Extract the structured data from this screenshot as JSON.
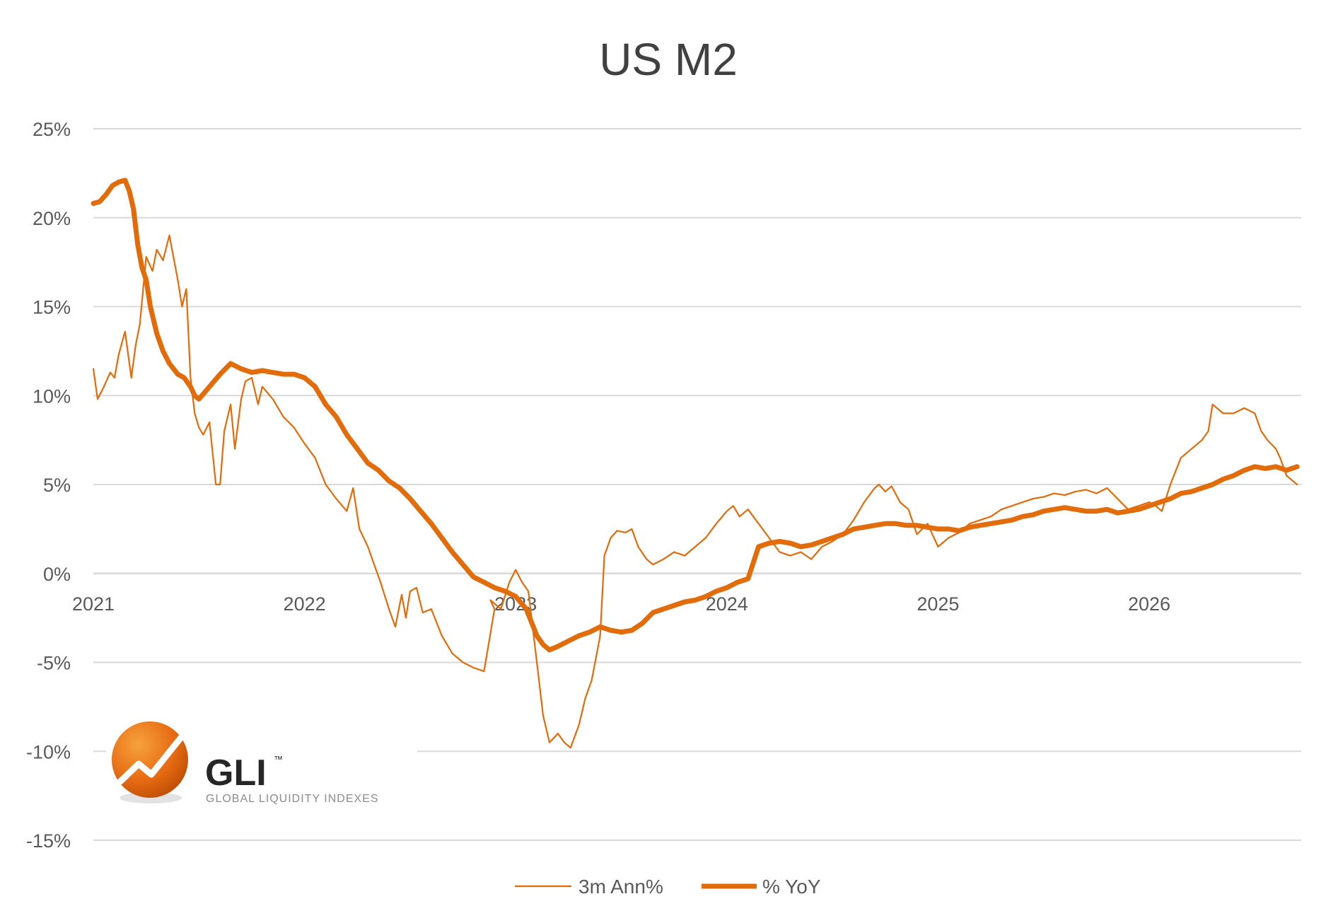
{
  "chart_data": {
    "type": "line",
    "title": "US M2",
    "xlabel": "",
    "ylabel": "",
    "xlim": [
      2021.0,
      2026.72
    ],
    "ylim": [
      -15,
      25
    ],
    "yticks": [
      25,
      20,
      15,
      10,
      5,
      0,
      -5,
      -10,
      -15
    ],
    "ytick_labels": [
      "25%",
      "20%",
      "15%",
      "10%",
      "5%",
      "0%",
      "-5%",
      "-10%",
      "-15%"
    ],
    "xticks": [
      2021,
      2022,
      2023,
      2024,
      2025,
      2026
    ],
    "xtick_labels": [
      "2021",
      "2022",
      "2023",
      "2024",
      "2025",
      "2026"
    ],
    "grid": true,
    "legend_position": "bottom",
    "colors": {
      "series": "#E26B0A",
      "grid": "#D9D9D9",
      "text": "#595959"
    },
    "series": [
      {
        "name": "3m Ann%",
        "line_weight": "thin",
        "x": [
          2021.0,
          2021.02,
          2021.05,
          2021.08,
          2021.1,
          2021.12,
          2021.15,
          2021.18,
          2021.2,
          2021.22,
          2021.25,
          2021.28,
          2021.3,
          2021.33,
          2021.36,
          2021.4,
          2021.42,
          2021.44,
          2021.46,
          2021.48,
          2021.5,
          2021.52,
          2021.55,
          2021.58,
          2021.6,
          2021.62,
          2021.65,
          2021.67,
          2021.7,
          2021.72,
          2021.75,
          2021.78,
          2021.8,
          2021.85,
          2021.9,
          2021.95,
          2022.0,
          2022.05,
          2022.1,
          2022.15,
          2022.2,
          2022.23,
          2022.26,
          2022.28,
          2022.3,
          2022.33,
          2022.36,
          2022.4,
          2022.43,
          2022.46,
          2022.48,
          2022.5,
          2022.53,
          2022.56,
          2022.6,
          2022.65,
          2022.7,
          2022.75,
          2022.8,
          2022.85,
          2022.9,
          2022.88,
          2022.93,
          2022.97,
          2023.0,
          2023.03,
          2023.06,
          2023.1,
          2023.13,
          2023.16,
          2023.2,
          2023.23,
          2023.26,
          2023.3,
          2023.33,
          2023.36,
          2023.4,
          2023.42,
          2023.45,
          2023.48,
          2023.52,
          2023.55,
          2023.58,
          2023.62,
          2023.65,
          2023.7,
          2023.75,
          2023.8,
          2023.85,
          2023.9,
          2023.95,
          2024.0,
          2024.03,
          2024.06,
          2024.1,
          2024.15,
          2024.2,
          2024.25,
          2024.3,
          2024.35,
          2024.4,
          2024.45,
          2024.5,
          2024.55,
          2024.6,
          2024.65,
          2024.7,
          2024.72,
          2024.75,
          2024.78,
          2024.82,
          2024.86,
          2024.9,
          2024.95,
          2025.0,
          2025.05,
          2025.1,
          2025.15,
          2025.2,
          2025.25,
          2025.3,
          2025.35,
          2025.4,
          2025.45,
          2025.5,
          2025.55,
          2025.6,
          2025.65,
          2025.7,
          2025.75,
          2025.8,
          2025.85,
          2025.9,
          2025.95,
          2026.0,
          2026.03,
          2026.06,
          2026.1,
          2026.15,
          2026.2,
          2026.25,
          2026.28,
          2026.3,
          2026.35,
          2026.4,
          2026.45,
          2026.5,
          2026.53,
          2026.56,
          2026.6,
          2026.62,
          2026.65,
          2026.7
        ],
        "y": [
          11.5,
          9.8,
          10.5,
          11.3,
          11.0,
          12.3,
          13.6,
          11.0,
          12.8,
          14.0,
          17.8,
          17.0,
          18.2,
          17.6,
          19.0,
          16.5,
          15.0,
          16.0,
          11.0,
          9.0,
          8.2,
          7.8,
          8.5,
          5.0,
          5.0,
          8.0,
          9.5,
          7.0,
          9.8,
          10.8,
          11.0,
          9.5,
          10.5,
          9.8,
          8.8,
          8.2,
          7.3,
          6.5,
          5.0,
          4.2,
          3.5,
          4.8,
          2.5,
          2.0,
          1.5,
          0.5,
          -0.5,
          -2.0,
          -3.0,
          -1.2,
          -2.5,
          -1.0,
          -0.8,
          -2.2,
          -2.0,
          -3.5,
          -4.5,
          -5.0,
          -5.3,
          -5.5,
          -2.0,
          -1.5,
          -2.0,
          -0.5,
          0.2,
          -0.5,
          -1.0,
          -5.0,
          -8.0,
          -9.5,
          -9.0,
          -9.5,
          -9.8,
          -8.5,
          -7.0,
          -6.0,
          -3.5,
          1.0,
          2.0,
          2.4,
          2.3,
          2.5,
          1.5,
          0.8,
          0.5,
          0.8,
          1.2,
          1.0,
          1.5,
          2.0,
          2.8,
          3.5,
          3.8,
          3.2,
          3.6,
          2.8,
          2.0,
          1.2,
          1.0,
          1.2,
          0.8,
          1.5,
          1.8,
          2.2,
          3.0,
          4.0,
          4.8,
          5.0,
          4.6,
          4.9,
          4.0,
          3.6,
          2.2,
          2.8,
          1.5,
          2.0,
          2.3,
          2.8,
          3.0,
          3.2,
          3.6,
          3.8,
          4.0,
          4.2,
          4.3,
          4.5,
          4.4,
          4.6,
          4.7,
          4.5,
          4.8,
          4.2,
          3.6,
          3.8,
          4.0,
          3.8,
          3.5,
          5.0,
          6.5,
          7.0,
          7.5,
          8.0,
          9.5,
          9.0,
          9.0,
          9.3,
          9.0,
          8.0,
          7.5,
          7.0,
          6.5,
          5.5,
          5.0
        ]
      },
      {
        "name": "% YoY",
        "line_weight": "thick",
        "x": [
          2021.0,
          2021.03,
          2021.06,
          2021.09,
          2021.12,
          2021.15,
          2021.17,
          2021.19,
          2021.21,
          2021.23,
          2021.25,
          2021.27,
          2021.3,
          2021.33,
          2021.36,
          2021.4,
          2021.43,
          2021.46,
          2021.48,
          2021.5,
          2021.55,
          2021.6,
          2021.65,
          2021.7,
          2021.75,
          2021.8,
          2021.85,
          2021.9,
          2021.95,
          2022.0,
          2022.05,
          2022.1,
          2022.15,
          2022.2,
          2022.25,
          2022.3,
          2022.35,
          2022.4,
          2022.45,
          2022.5,
          2022.55,
          2022.6,
          2022.65,
          2022.7,
          2022.75,
          2022.8,
          2022.85,
          2022.9,
          2022.95,
          2023.0,
          2023.05,
          2023.1,
          2023.13,
          2023.16,
          2023.2,
          2023.25,
          2023.3,
          2023.35,
          2023.4,
          2023.45,
          2023.5,
          2023.55,
          2023.6,
          2023.65,
          2023.7,
          2023.75,
          2023.8,
          2023.85,
          2023.9,
          2023.95,
          2024.0,
          2024.05,
          2024.1,
          2024.15,
          2024.2,
          2024.25,
          2024.3,
          2024.35,
          2024.4,
          2024.45,
          2024.5,
          2024.55,
          2024.6,
          2024.65,
          2024.7,
          2024.75,
          2024.8,
          2024.85,
          2024.9,
          2024.95,
          2025.0,
          2025.05,
          2025.1,
          2025.15,
          2025.2,
          2025.25,
          2025.3,
          2025.35,
          2025.4,
          2025.45,
          2025.5,
          2025.55,
          2025.6,
          2025.65,
          2025.7,
          2025.75,
          2025.8,
          2025.85,
          2025.9,
          2025.95,
          2026.0,
          2026.05,
          2026.1,
          2026.15,
          2026.2,
          2026.25,
          2026.3,
          2026.35,
          2026.4,
          2026.45,
          2026.5,
          2026.55,
          2026.6,
          2026.65,
          2026.7
        ],
        "y": [
          20.8,
          20.9,
          21.3,
          21.8,
          22.0,
          22.1,
          21.5,
          20.5,
          18.5,
          17.2,
          16.5,
          15.0,
          13.5,
          12.5,
          11.8,
          11.2,
          11.0,
          10.5,
          10.0,
          9.8,
          10.5,
          11.2,
          11.8,
          11.5,
          11.3,
          11.4,
          11.3,
          11.2,
          11.2,
          11.0,
          10.5,
          9.5,
          8.8,
          7.8,
          7.0,
          6.2,
          5.8,
          5.2,
          4.8,
          4.2,
          3.5,
          2.8,
          2.0,
          1.2,
          0.5,
          -0.2,
          -0.5,
          -0.8,
          -1.0,
          -1.3,
          -2.0,
          -3.5,
          -4.0,
          -4.3,
          -4.1,
          -3.8,
          -3.5,
          -3.3,
          -3.0,
          -3.2,
          -3.3,
          -3.2,
          -2.8,
          -2.2,
          -2.0,
          -1.8,
          -1.6,
          -1.5,
          -1.3,
          -1.0,
          -0.8,
          -0.5,
          -0.3,
          1.5,
          1.7,
          1.8,
          1.7,
          1.5,
          1.6,
          1.8,
          2.0,
          2.2,
          2.5,
          2.6,
          2.7,
          2.8,
          2.8,
          2.7,
          2.7,
          2.6,
          2.5,
          2.5,
          2.4,
          2.6,
          2.7,
          2.8,
          2.9,
          3.0,
          3.2,
          3.3,
          3.5,
          3.6,
          3.7,
          3.6,
          3.5,
          3.5,
          3.6,
          3.4,
          3.5,
          3.6,
          3.8,
          4.0,
          4.2,
          4.5,
          4.6,
          4.8,
          5.0,
          5.3,
          5.5,
          5.8,
          6.0,
          5.9,
          6.0,
          5.8,
          6.0
        ]
      }
    ]
  },
  "logo": {
    "name": "GLI",
    "trademark": "™",
    "tagline": "GLOBAL LIQUIDITY INDEXES",
    "icon": "gli-rising-arrow-icon"
  }
}
